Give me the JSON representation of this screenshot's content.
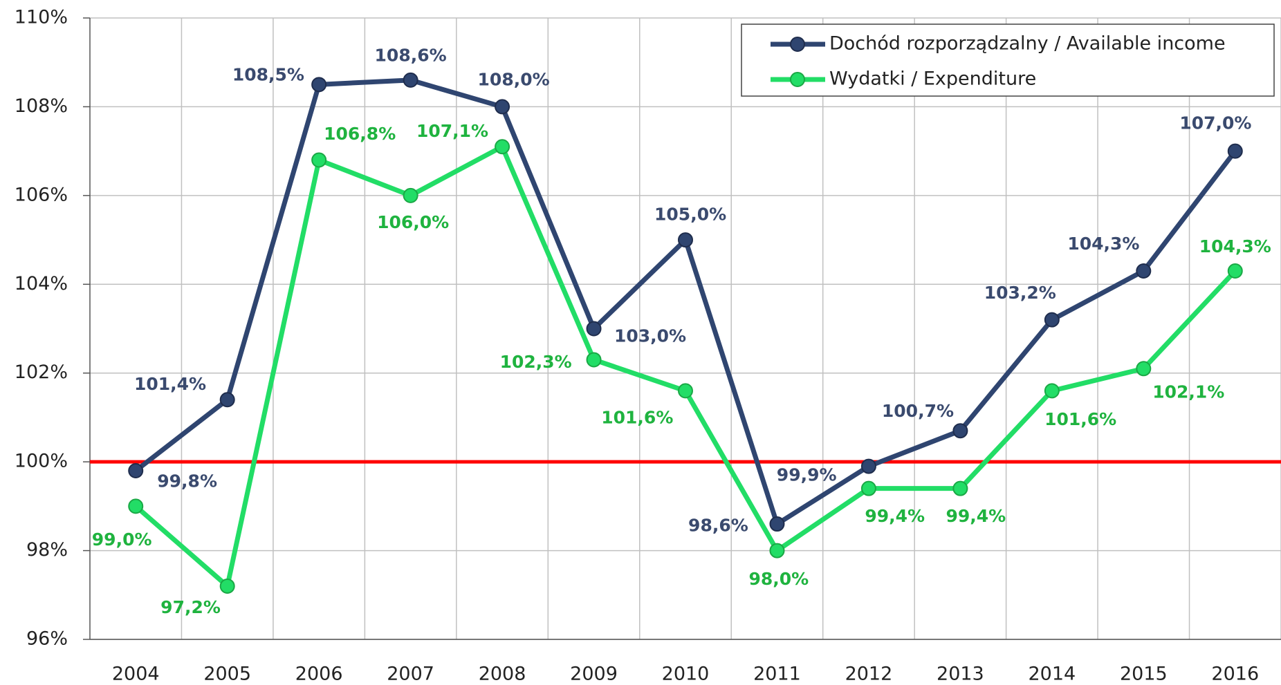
{
  "chart_data": {
    "type": "line",
    "categories": [
      "2004",
      "2005",
      "2006",
      "2007",
      "2008",
      "2009",
      "2010",
      "2011",
      "2012",
      "2013",
      "2014",
      "2015",
      "2016"
    ],
    "series": [
      {
        "name": "Dochód rozporządzalny / Available income",
        "color": "#2f4570",
        "label_color": "#3a4a6e",
        "values": [
          99.8,
          101.4,
          108.5,
          108.6,
          108.0,
          103.0,
          105.0,
          98.6,
          99.9,
          100.7,
          103.2,
          104.3,
          107.0
        ],
        "value_labels": [
          "99,8%",
          "101,4%",
          "108,5%",
          "108,6%",
          "108,0%",
          "103,0%",
          "105,0%",
          "98,6%",
          "99,9%",
          "100,7%",
          "103,2%",
          "104,3%",
          "107,0%"
        ]
      },
      {
        "name": "Wydatki / Expenditure",
        "color": "#22dd66",
        "label_color": "#1fb33f",
        "values": [
          99.0,
          97.2,
          106.8,
          106.0,
          107.1,
          102.3,
          101.6,
          98.0,
          99.4,
          99.4,
          101.6,
          102.1,
          104.3
        ],
        "value_labels": [
          "99,0%",
          "97,2%",
          "106,8%",
          "106,0%",
          "107,1%",
          "102,3%",
          "101,6%",
          "98,0%",
          "99,4%",
          "99,4%",
          "101,6%",
          "102,1%",
          "104,3%"
        ]
      }
    ],
    "ylim": [
      96,
      110
    ],
    "yticks": [
      {
        "value": 96,
        "label": "96%"
      },
      {
        "value": 98,
        "label": "98%"
      },
      {
        "value": 100,
        "label": "100%"
      },
      {
        "value": 102,
        "label": "102%"
      },
      {
        "value": 104,
        "label": "104%"
      },
      {
        "value": 106,
        "label": "106%"
      },
      {
        "value": 108,
        "label": "108%"
      },
      {
        "value": 110,
        "label": "110%"
      }
    ],
    "grid": true,
    "reference_line": {
      "value": 100,
      "color": "#ff0000"
    },
    "legend": "upper right"
  }
}
